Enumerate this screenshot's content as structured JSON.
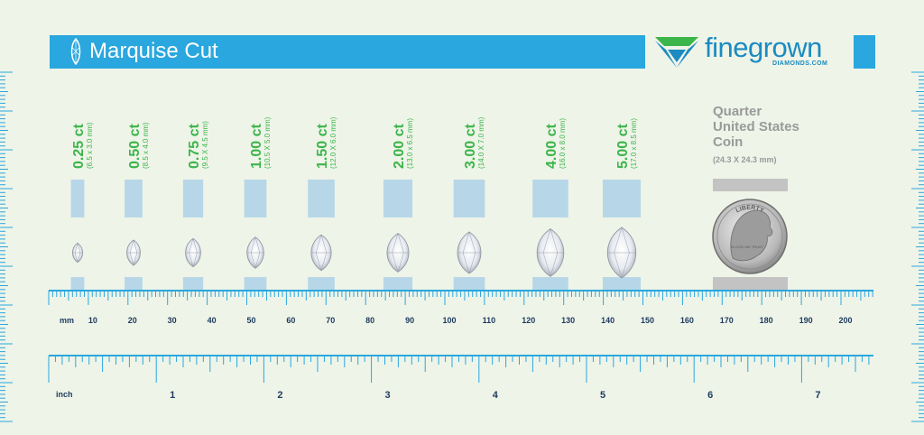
{
  "header": {
    "title": "Marquise Cut",
    "brand_name": "finegrown",
    "brand_sub": "DIAMONDS.COM",
    "brand_color": "#1b8bc1",
    "accent_green": "#3cb54a",
    "bar_color": "#2aa7de"
  },
  "stones": [
    {
      "carat": "0.25 ct",
      "dims": "(6.5 x 3.0 mm)"
    },
    {
      "carat": "0.50 ct",
      "dims": "(8.5 x 4.0 mm)"
    },
    {
      "carat": "0.75 ct",
      "dims": "(9.5 X 4.5 mm)"
    },
    {
      "carat": "1.00 ct",
      "dims": "(10.5 X 5.0 mm)"
    },
    {
      "carat": "1.50 ct",
      "dims": "(12.0 X 6.0 mm)"
    },
    {
      "carat": "2.00 ct",
      "dims": "(13.0 x 6.5 mm)"
    },
    {
      "carat": "3.00 ct",
      "dims": "(14.0 X 7.0 mm)"
    },
    {
      "carat": "4.00 ct",
      "dims": "(16.0 x 8.0 mm)"
    },
    {
      "carat": "5.00 ct",
      "dims": "(17.0 x 8.5 mm)"
    }
  ],
  "quarter": {
    "title_line1": "Quarter",
    "title_line2": "United States",
    "title_line3": "Coin",
    "dims": "(24.3 X 24.3 mm)",
    "coin_text": "LIBERTY",
    "coin_date": "IN GOD WE TRUST"
  },
  "ruler": {
    "mm_unit": "mm",
    "mm_labels": [
      "10",
      "20",
      "30",
      "40",
      "50",
      "60",
      "70",
      "80",
      "90",
      "100",
      "110",
      "120",
      "130",
      "140",
      "150",
      "160",
      "170",
      "180",
      "190",
      "200"
    ],
    "inch_unit": "inch",
    "inch_labels": [
      "1",
      "2",
      "3",
      "4",
      "5",
      "6",
      "7"
    ]
  }
}
